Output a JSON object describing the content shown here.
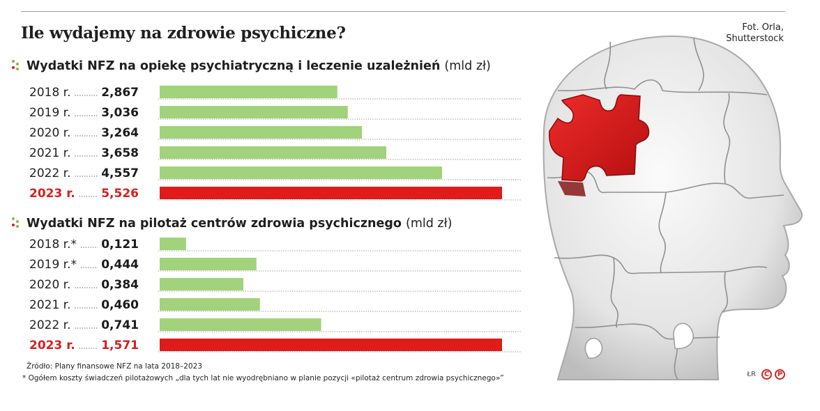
{
  "title": "Ile wydajemy na zdrowie psychiczne?",
  "credit": [
    "Fot. Orla,",
    "Shutterstock"
  ],
  "colors": {
    "green": "#a2d27b",
    "red": "#e11a1a",
    "highlight_text": "#d81e1e"
  },
  "chart_data": [
    {
      "type": "bar",
      "orientation": "horizontal",
      "title": "Wydatki NFZ na opiekę psychiatryczną i leczenie uzależnień",
      "unit": "(mld zł)",
      "categories": [
        "2018 r.",
        "2019 r.",
        "2020 r.",
        "2021 r.",
        "2022 r.",
        "2023 r."
      ],
      "values": [
        2.867,
        3.036,
        3.264,
        3.658,
        4.557,
        5.526
      ],
      "value_labels": [
        "2,867",
        "3,036",
        "3,264",
        "3,658",
        "4,557",
        "5,526"
      ],
      "highlight_index": 5,
      "xlim": [
        0,
        5.526
      ]
    },
    {
      "type": "bar",
      "orientation": "horizontal",
      "title": "Wydatki NFZ na pilotaż centrów zdrowia psychicznego",
      "unit": "(mld zł)",
      "categories": [
        "2018 r.*",
        "2019 r.*",
        "2020 r.",
        "2021 r.",
        "2022 r.",
        "2023 r."
      ],
      "values": [
        0.121,
        0.444,
        0.384,
        0.46,
        0.741,
        1.571
      ],
      "value_labels": [
        "0,121",
        "0,444",
        "0,384",
        "0,460",
        "0,741",
        "1,571"
      ],
      "highlight_index": 5,
      "xlim": [
        0,
        1.571
      ]
    }
  ],
  "footnotes": {
    "source": "Źródło: Plany finansowe NFZ na lata 2018–2023",
    "note": "* Ogółem koszty świadczeń pilotażowych „dla tych lat nie wyodrębniano w planie pozycji «pilotaż centrum zdrowia psychicznego»”"
  },
  "logo": {
    "tag": "ŁR",
    "letters": [
      "C",
      "P"
    ]
  }
}
